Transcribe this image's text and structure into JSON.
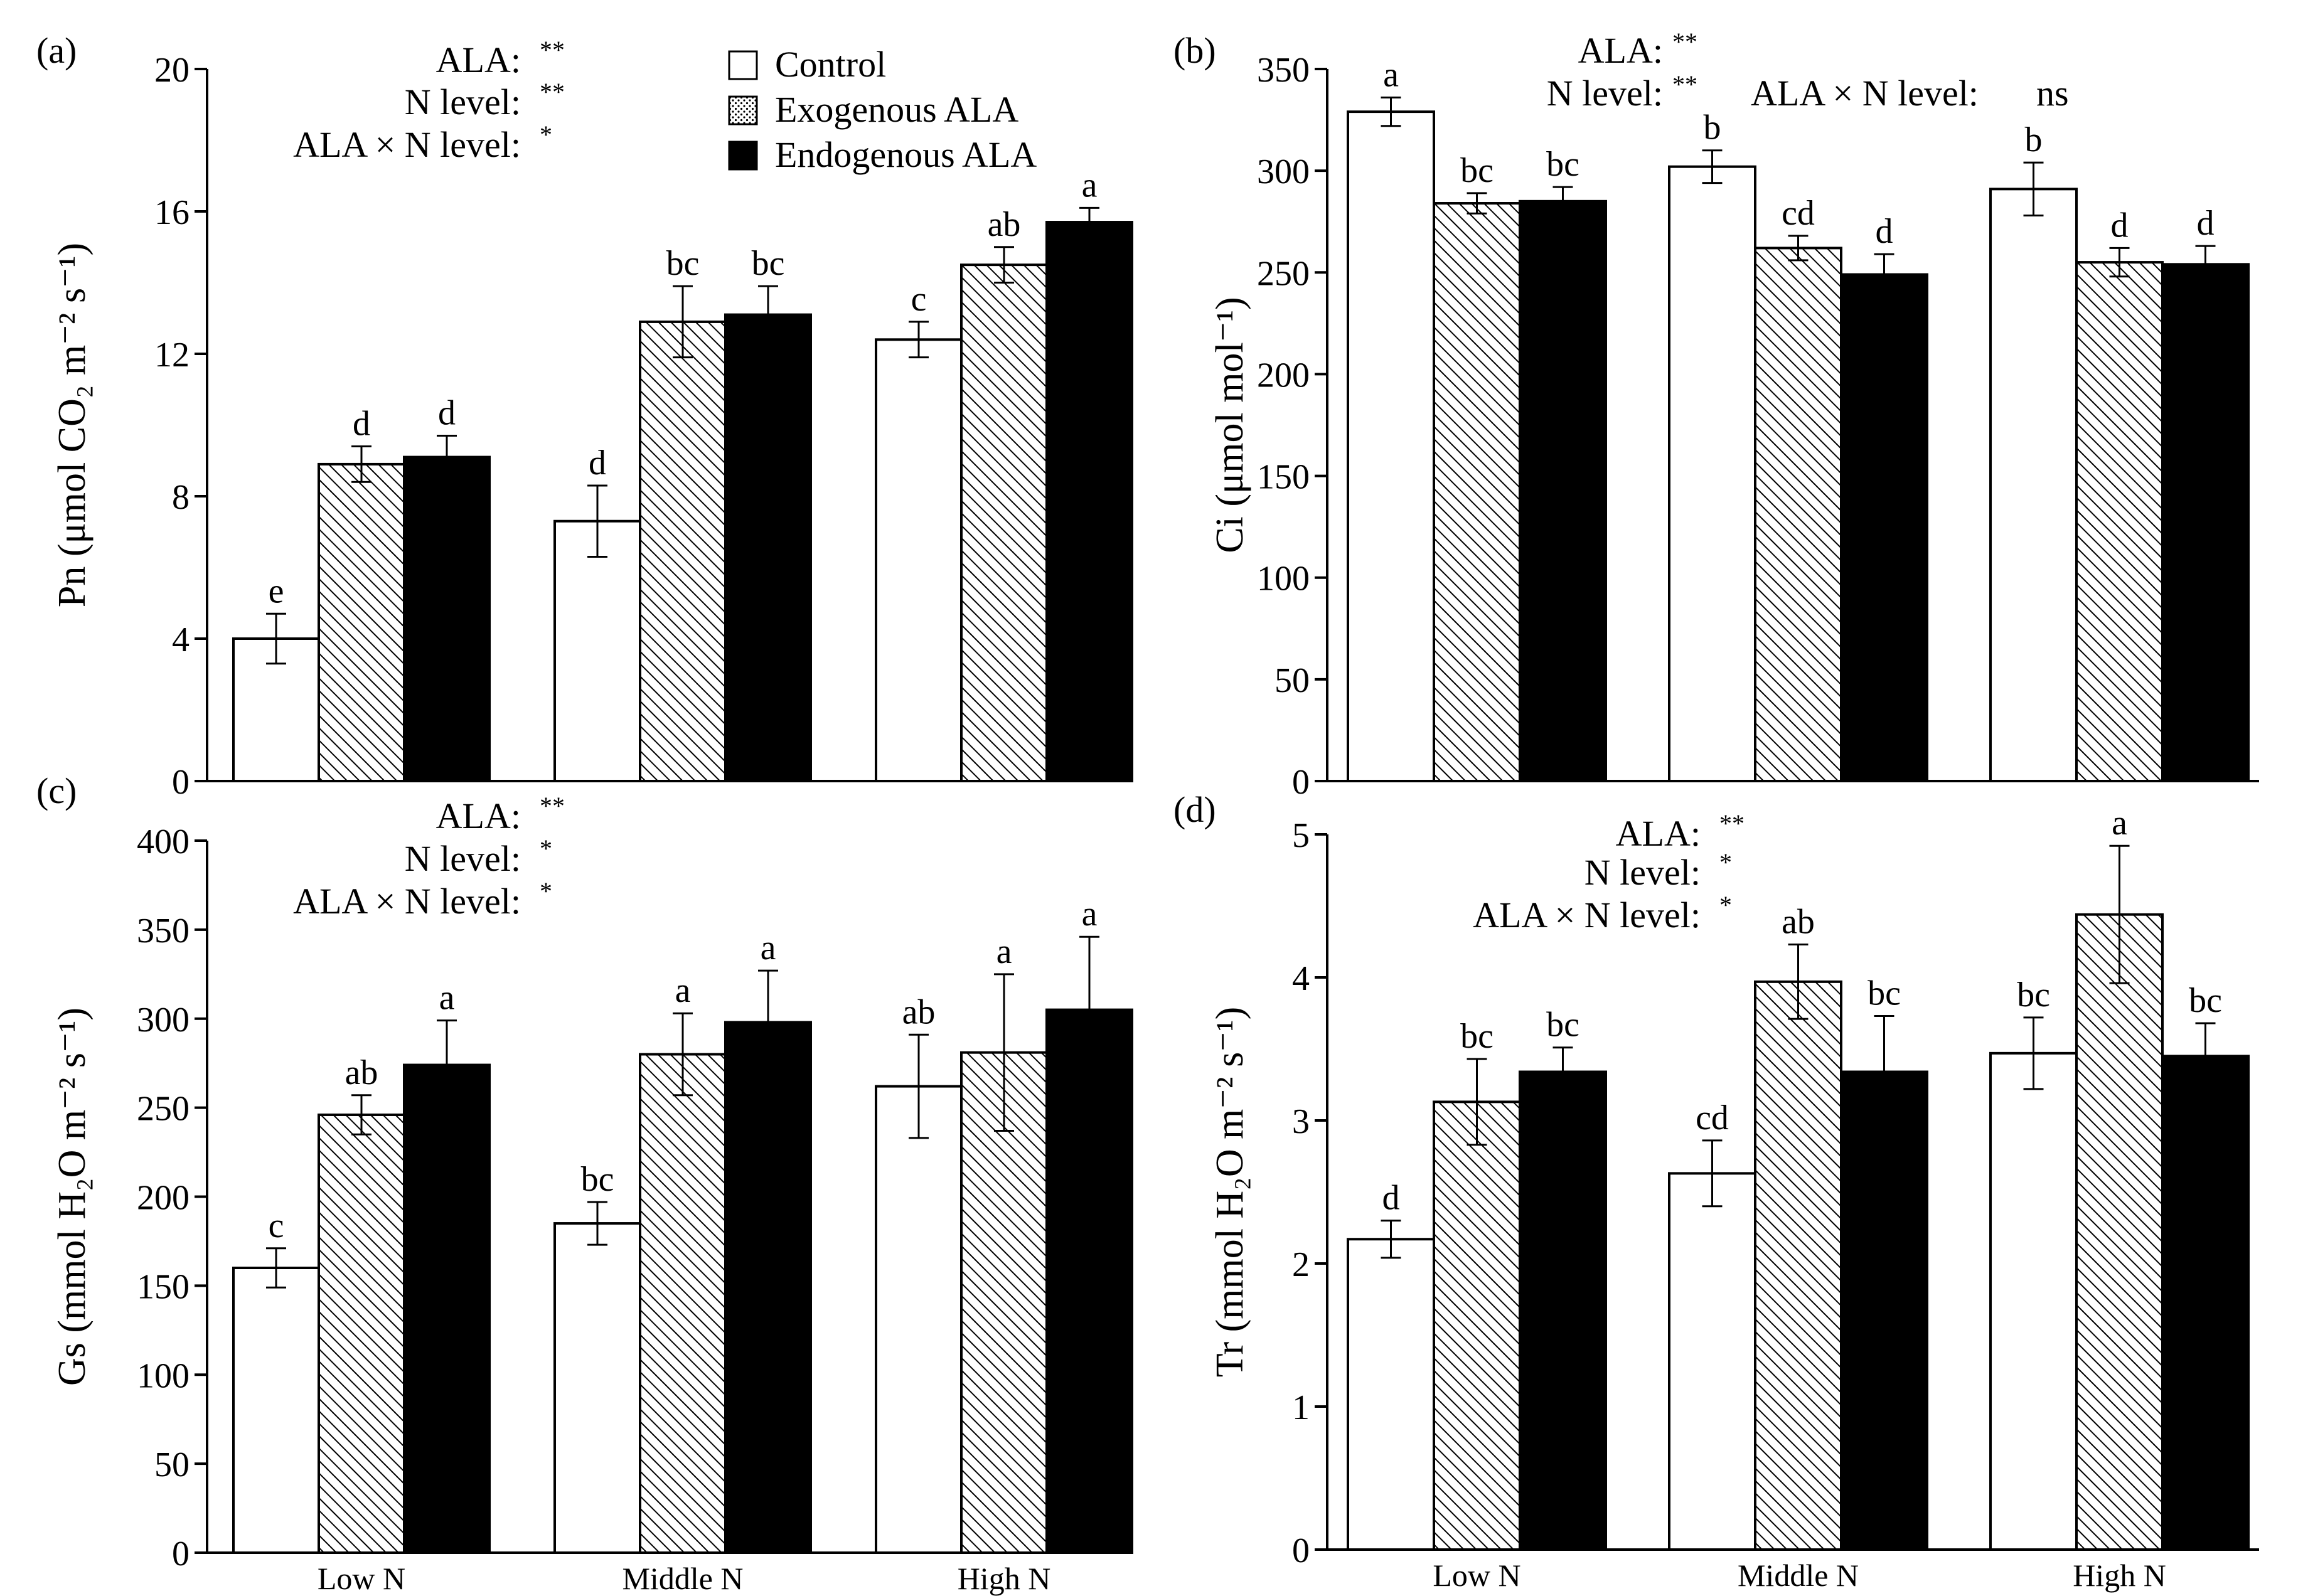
{
  "legend": {
    "items": [
      {
        "label": "Control",
        "fill": "white"
      },
      {
        "label": "Exogenous ALA",
        "fill": "dots"
      },
      {
        "label": "Endogenous ALA",
        "fill": "black"
      }
    ]
  },
  "chart_data": [
    {
      "type": "bar",
      "panel_label": "(a)",
      "ylabel": "Pn (μmol CO₂ m⁻² s⁻¹)",
      "ylim": [
        0,
        20
      ],
      "yticks": [
        0,
        4,
        8,
        12,
        16,
        20
      ],
      "categories": [
        "Low N",
        "Middle N",
        "High N"
      ],
      "show_xticklabels": false,
      "series": [
        {
          "name": "Control",
          "values": [
            4.0,
            7.3,
            12.4
          ],
          "errors": [
            0.7,
            1.0,
            0.5
          ],
          "letters": [
            "e",
            "d",
            "c"
          ]
        },
        {
          "name": "Exogenous ALA",
          "values": [
            8.9,
            12.9,
            14.5
          ],
          "errors": [
            0.5,
            1.0,
            0.5
          ],
          "letters": [
            "d",
            "bc",
            "ab"
          ]
        },
        {
          "name": "Endogenous ALA",
          "values": [
            9.1,
            13.1,
            15.7
          ],
          "errors": [
            0.6,
            0.8,
            0.4
          ],
          "letters": [
            "d",
            "bc",
            "a"
          ]
        }
      ],
      "annotations": [
        {
          "label": "ALA:",
          "sig": "**"
        },
        {
          "label": "N level:",
          "sig": "**"
        },
        {
          "label": "ALA × N level:",
          "sig": "*"
        }
      ]
    },
    {
      "type": "bar",
      "panel_label": "(b)",
      "ylabel": "Ci (μmol mol⁻¹)",
      "ylim": [
        0,
        350
      ],
      "yticks": [
        0,
        50,
        100,
        150,
        200,
        250,
        300,
        350
      ],
      "categories": [
        "Low N",
        "Middle N",
        "High N"
      ],
      "show_xticklabels": false,
      "series": [
        {
          "name": "Control",
          "values": [
            329,
            302,
            291
          ],
          "errors": [
            7,
            8,
            13
          ],
          "letters": [
            "a",
            "b",
            "b"
          ]
        },
        {
          "name": "Exogenous ALA",
          "values": [
            284,
            262,
            255
          ],
          "errors": [
            5,
            6,
            7
          ],
          "letters": [
            "bc",
            "cd",
            "d"
          ]
        },
        {
          "name": "Endogenous ALA",
          "values": [
            285,
            249,
            254
          ],
          "errors": [
            7,
            10,
            9
          ],
          "letters": [
            "bc",
            "d",
            "d"
          ]
        }
      ],
      "annotations": [
        {
          "label": "ALA:",
          "sig": "**"
        },
        {
          "label": "N level:",
          "sig": "**"
        },
        {
          "label": "ALA × N level:",
          "sig": "ns"
        }
      ]
    },
    {
      "type": "bar",
      "panel_label": "(c)",
      "ylabel": "Gs (mmol H₂O m⁻² s⁻¹)",
      "ylim": [
        0,
        400
      ],
      "yticks": [
        0,
        50,
        100,
        150,
        200,
        250,
        300,
        350,
        400
      ],
      "categories": [
        "Low N",
        "Middle N",
        "High N"
      ],
      "show_xticklabels": true,
      "series": [
        {
          "name": "Control",
          "values": [
            160,
            185,
            262
          ],
          "errors": [
            11,
            12,
            29
          ],
          "letters": [
            "c",
            "bc",
            "ab"
          ]
        },
        {
          "name": "Exogenous ALA",
          "values": [
            246,
            280,
            281
          ],
          "errors": [
            11,
            23,
            44
          ],
          "letters": [
            "ab",
            "a",
            "a"
          ]
        },
        {
          "name": "Endogenous ALA",
          "values": [
            274,
            298,
            305
          ],
          "errors": [
            25,
            29,
            41
          ],
          "letters": [
            "a",
            "a",
            "a"
          ]
        }
      ],
      "annotations": [
        {
          "label": "ALA:",
          "sig": "**"
        },
        {
          "label": "N level:",
          "sig": "*"
        },
        {
          "label": "ALA × N level:",
          "sig": "*"
        }
      ]
    },
    {
      "type": "bar",
      "panel_label": "(d)",
      "ylabel": "Tr (mmol H₂O m⁻² s⁻¹)",
      "ylim": [
        0,
        5
      ],
      "yticks": [
        0,
        1,
        2,
        3,
        4,
        5
      ],
      "categories": [
        "Low N",
        "Middle N",
        "High N"
      ],
      "show_xticklabels": true,
      "series": [
        {
          "name": "Control",
          "values": [
            2.17,
            2.63,
            3.47
          ],
          "errors": [
            0.13,
            0.23,
            0.25
          ],
          "letters": [
            "d",
            "cd",
            "bc"
          ]
        },
        {
          "name": "Exogenous ALA",
          "values": [
            3.13,
            3.97,
            4.44
          ],
          "errors": [
            0.3,
            0.26,
            0.48
          ],
          "letters": [
            "bc",
            "ab",
            "a"
          ]
        },
        {
          "name": "Endogenous ALA",
          "values": [
            3.34,
            3.34,
            3.45
          ],
          "errors": [
            0.17,
            0.39,
            0.23
          ],
          "letters": [
            "bc",
            "bc",
            "bc"
          ]
        }
      ],
      "annotations": [
        {
          "label": "ALA:",
          "sig": "**"
        },
        {
          "label": "N level:",
          "sig": "*"
        },
        {
          "label": "ALA × N level:",
          "sig": "*"
        }
      ]
    }
  ]
}
